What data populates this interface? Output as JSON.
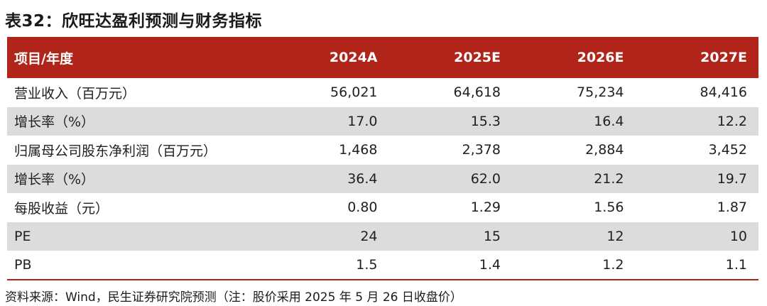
{
  "title": "表32：欣旺达盈利预测与财务指标",
  "table": {
    "headers": [
      "项目/年度",
      "2024A",
      "2025E",
      "2026E",
      "2027E"
    ],
    "rows": [
      {
        "label": "营业收入（百万元）",
        "values": [
          "56,021",
          "64,618",
          "75,234",
          "84,416"
        ]
      },
      {
        "label": "增长率（%）",
        "values": [
          "17.0",
          "15.3",
          "16.4",
          "12.2"
        ]
      },
      {
        "label": "归属母公司股东净利润（百万元）",
        "values": [
          "1,468",
          "2,378",
          "2,884",
          "3,452"
        ]
      },
      {
        "label": "增长率（%）",
        "values": [
          "36.4",
          "62.0",
          "21.2",
          "19.7"
        ]
      },
      {
        "label": "每股收益（元）",
        "values": [
          "0.80",
          "1.29",
          "1.56",
          "1.87"
        ]
      },
      {
        "label": "PE",
        "values": [
          "24",
          "15",
          "12",
          "10"
        ]
      },
      {
        "label": "PB",
        "values": [
          "1.5",
          "1.4",
          "1.2",
          "1.1"
        ]
      }
    ]
  },
  "source": "资料来源：Wind，民生证券研究院预测（注：股价采用 2025 年 5 月 26 日收盘价）",
  "colors": {
    "header_bg": "#b12419",
    "alt_row_bg": "#dcdcdc"
  }
}
